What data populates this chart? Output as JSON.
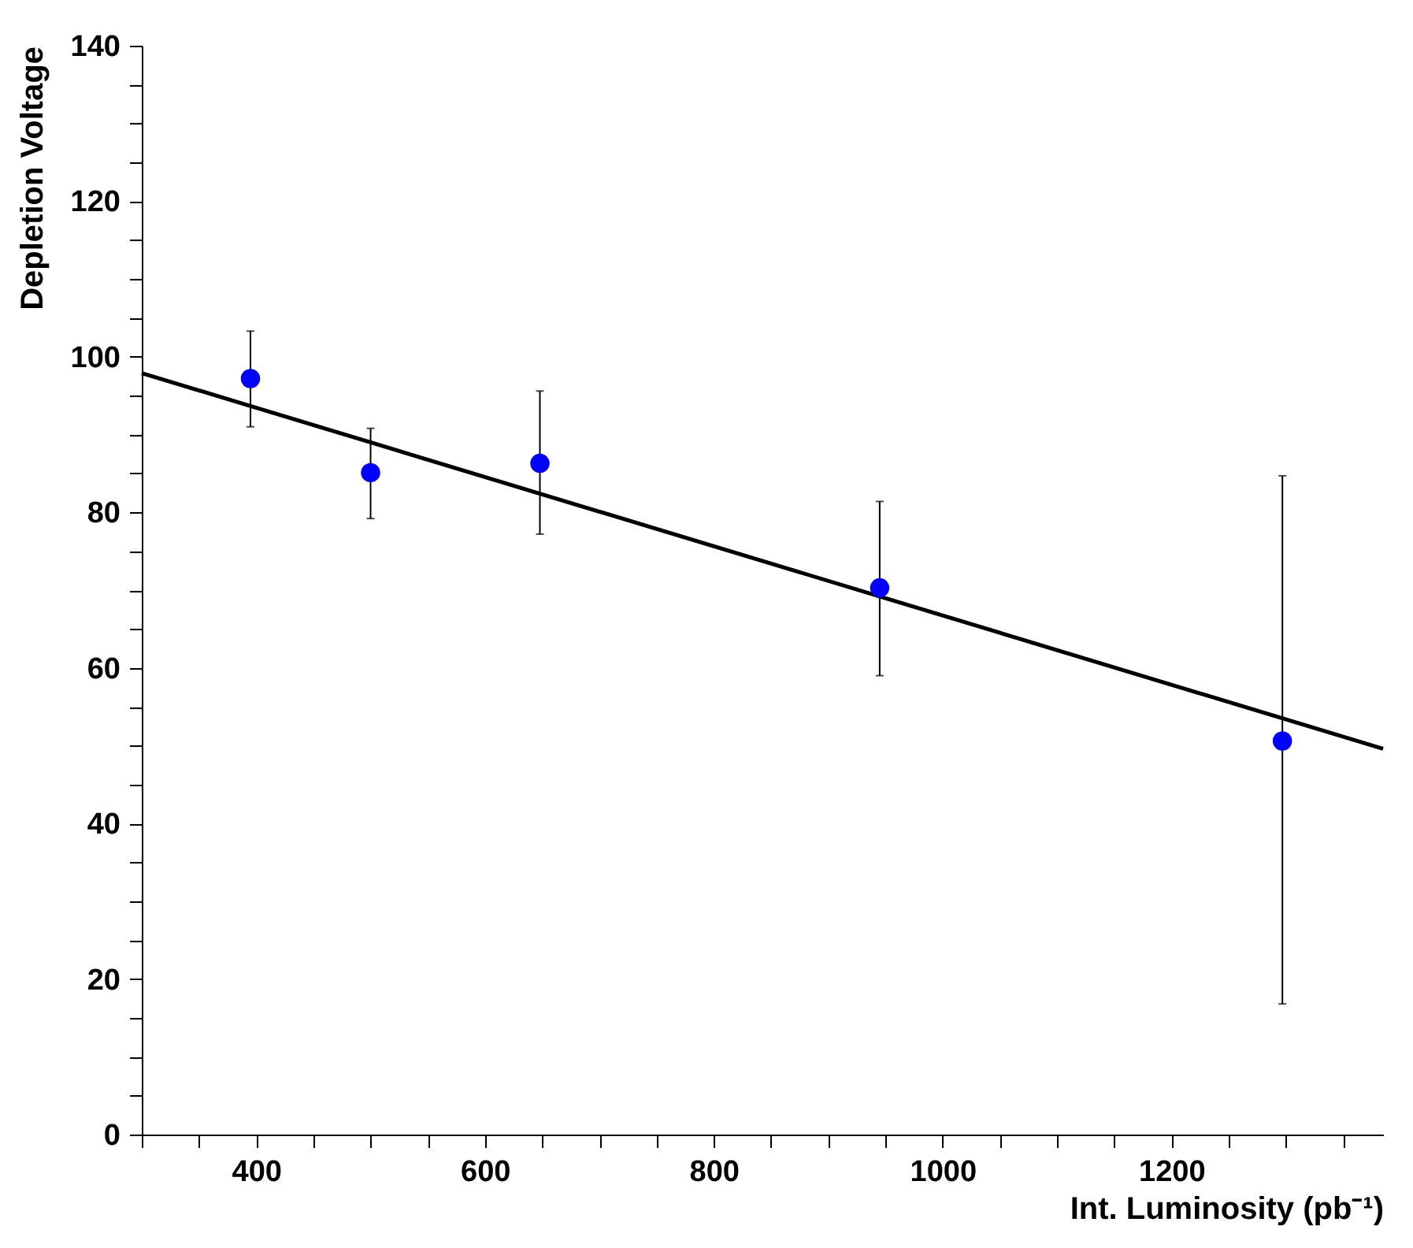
{
  "chart_data": {
    "type": "scatter",
    "xlabel": "Int. Luminosity (pb⁻¹)",
    "ylabel": "Depletion Voltage",
    "xlim": [
      300,
      1385
    ],
    "ylim": [
      0,
      140
    ],
    "xticks": [
      {
        "value": 300,
        "label": null
      },
      {
        "value": 350,
        "label": null
      },
      400,
      {
        "value": 450,
        "label": null
      },
      {
        "value": 500,
        "label": null
      },
      {
        "value": 550,
        "label": null
      },
      600,
      {
        "value": 650,
        "label": null
      },
      {
        "value": 700,
        "label": null
      },
      {
        "value": 750,
        "label": null
      },
      800,
      {
        "value": 850,
        "label": null
      },
      {
        "value": 900,
        "label": null
      },
      {
        "value": 950,
        "label": null
      },
      1000,
      {
        "value": 1050,
        "label": null
      },
      {
        "value": 1100,
        "label": null
      },
      {
        "value": 1150,
        "label": null
      },
      1200,
      {
        "value": 1250,
        "label": null
      },
      {
        "value": 1300,
        "label": null
      },
      {
        "value": 1350,
        "label": null
      }
    ],
    "yticks": [
      0,
      {
        "value": 5,
        "label": null
      },
      {
        "value": 10,
        "label": null
      },
      {
        "value": 15,
        "label": null
      },
      20,
      {
        "value": 25,
        "label": null
      },
      {
        "value": 30,
        "label": null
      },
      {
        "value": 35,
        "label": null
      },
      40,
      {
        "value": 45,
        "label": null
      },
      {
        "value": 50,
        "label": null
      },
      {
        "value": 55,
        "label": null
      },
      60,
      {
        "value": 65,
        "label": null
      },
      {
        "value": 70,
        "label": null
      },
      {
        "value": 75,
        "label": null
      },
      80,
      {
        "value": 85,
        "label": null
      },
      {
        "value": 90,
        "label": null
      },
      {
        "value": 95,
        "label": null
      },
      100,
      {
        "value": 105,
        "label": null
      },
      {
        "value": 110,
        "label": null
      },
      {
        "value": 115,
        "label": null
      },
      120,
      {
        "value": 125,
        "label": null
      },
      {
        "value": 130,
        "label": null
      },
      {
        "value": 135,
        "label": null
      },
      140
    ],
    "marker": "circle",
    "series": [
      {
        "color": "#0000ff",
        "x": [
          395,
          500,
          648,
          945,
          1297
        ],
        "values": [
          97.2,
          85.1,
          86.3,
          70.3,
          50.6
        ],
        "errors": [
          [
            91.0,
            103.3
          ],
          [
            79.2,
            90.8
          ],
          [
            77.2,
            95.6
          ],
          [
            59.0,
            81.4
          ],
          [
            16.8,
            84.7
          ]
        ]
      },
      {
        "type": "line",
        "color": "#000000",
        "line_style": "solid",
        "marker": "none",
        "x": [
          300,
          1385
        ],
        "values": [
          97.9,
          49.6
        ]
      }
    ]
  }
}
